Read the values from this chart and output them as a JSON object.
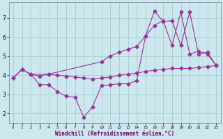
{
  "background_color": "#cce8ee",
  "grid_color": "#aacccc",
  "line_color": "#993399",
  "xlabel": "Windchill (Refroidissement éolien,°C)",
  "xlim": [
    -0.5,
    23.5
  ],
  "ylim": [
    1.5,
    7.8
  ],
  "yticks": [
    2,
    3,
    4,
    5,
    6,
    7
  ],
  "xticks": [
    0,
    1,
    2,
    3,
    4,
    5,
    6,
    7,
    8,
    9,
    10,
    11,
    12,
    13,
    14,
    15,
    16,
    17,
    18,
    19,
    20,
    21,
    22,
    23
  ],
  "line1_x": [
    0,
    1,
    2,
    3,
    4,
    5,
    6,
    7,
    8,
    9,
    10,
    11,
    12,
    13,
    14,
    15,
    16,
    17,
    18,
    19,
    20,
    21,
    22,
    23
  ],
  "line1_y": [
    3.85,
    4.3,
    4.05,
    3.95,
    4.05,
    4.0,
    3.95,
    3.9,
    3.85,
    3.8,
    3.85,
    3.9,
    4.0,
    4.05,
    4.1,
    4.2,
    4.25,
    4.3,
    4.35,
    4.35,
    4.35,
    4.4,
    4.45,
    4.5
  ],
  "line2_x": [
    0,
    1,
    2,
    3,
    4,
    5,
    6,
    7,
    8,
    9,
    10,
    11,
    12,
    13,
    14,
    15,
    16,
    17,
    18,
    19,
    20,
    21,
    22,
    23
  ],
  "line2_y": [
    3.85,
    4.3,
    4.05,
    3.5,
    3.5,
    3.15,
    2.9,
    2.85,
    1.8,
    2.35,
    3.45,
    3.5,
    3.55,
    3.55,
    3.7,
    6.05,
    6.6,
    6.85,
    5.55,
    7.3,
    5.1,
    5.25,
    5.1,
    4.5
  ],
  "line3_x": [
    0,
    1,
    2,
    4,
    10,
    11,
    12,
    13,
    14,
    15,
    16,
    17,
    18,
    19,
    20,
    21,
    22,
    23
  ],
  "line3_y": [
    3.85,
    4.3,
    4.05,
    4.05,
    4.7,
    5.0,
    5.2,
    5.35,
    5.5,
    6.05,
    7.35,
    6.8,
    6.85,
    5.55,
    7.3,
    5.1,
    5.2,
    4.5
  ],
  "marker": "D",
  "markersize": 2.5,
  "linewidth": 0.8
}
